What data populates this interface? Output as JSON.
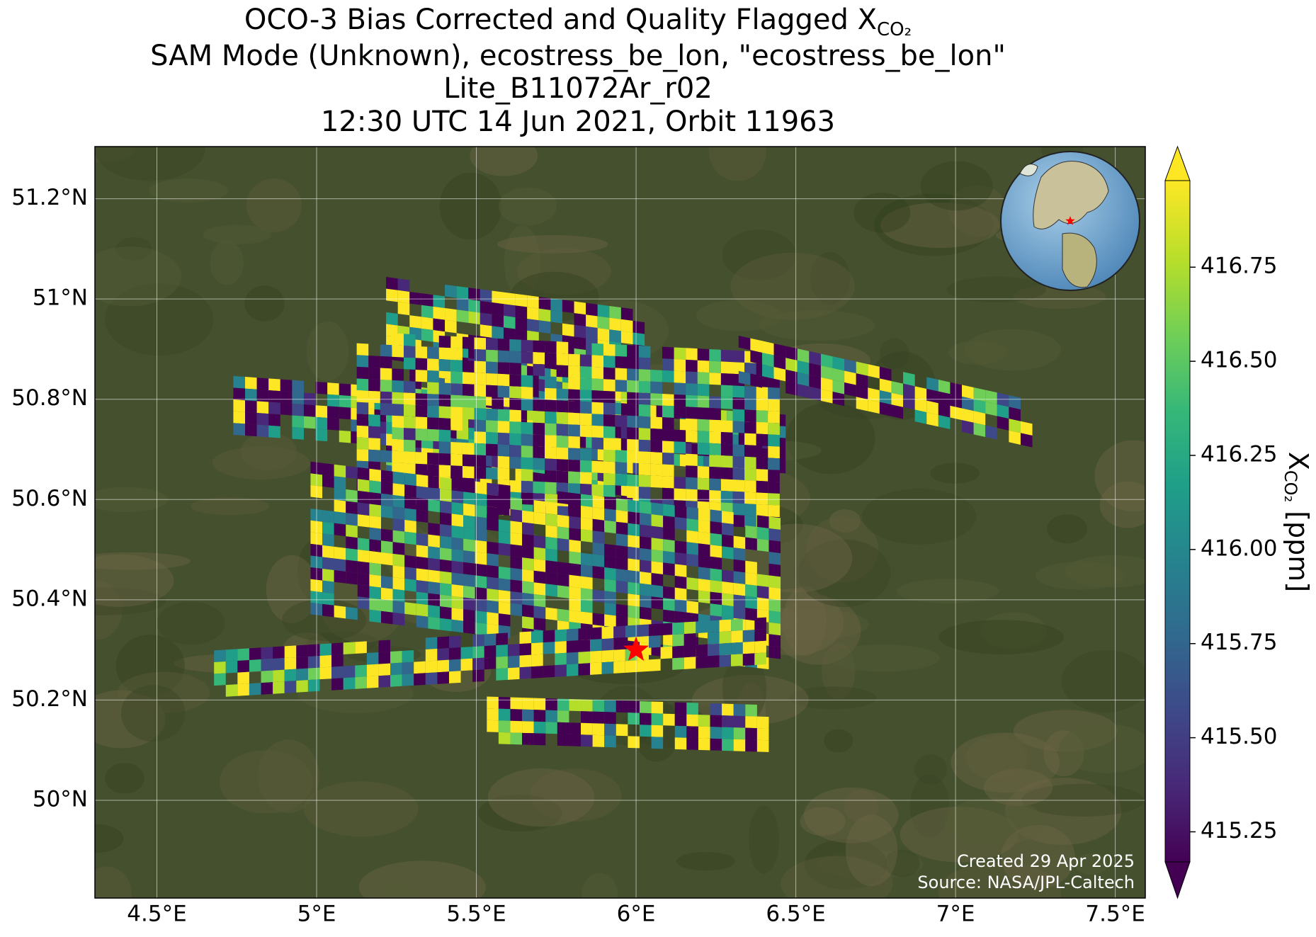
{
  "chart_data": {
    "type": "map",
    "title": [
      "OCO-3 Bias Corrected and Quality Flagged X",
      "SAM Mode (Unknown), ecostress_be_lon, \"ecostress_be_lon\"",
      "Lite_B11072Ar_r02",
      "12:30 UTC 14 Jun 2021, Orbit 11963"
    ],
    "title_subscript": "CO₂",
    "xlim": [
      4.306,
      7.594
    ],
    "ylim": [
      49.805,
      51.304
    ],
    "xticks": [
      {
        "value": 4.5,
        "label": "4.5°E"
      },
      {
        "value": 5,
        "label": "5°E"
      },
      {
        "value": 5.5,
        "label": "5.5°E"
      },
      {
        "value": 6,
        "label": "6°E"
      },
      {
        "value": 6.5,
        "label": "6.5°E"
      },
      {
        "value": 7,
        "label": "7°E"
      },
      {
        "value": 7.5,
        "label": "7.5°E"
      }
    ],
    "yticks": [
      {
        "value": 50,
        "label": "50°N"
      },
      {
        "value": 50.2,
        "label": "50.2°N"
      },
      {
        "value": 50.4,
        "label": "50.4°N"
      },
      {
        "value": 50.6,
        "label": "50.6°N"
      },
      {
        "value": 50.8,
        "label": "50.8°N"
      },
      {
        "value": 51,
        "label": "51°N"
      },
      {
        "value": 51.2,
        "label": "51.2°N"
      }
    ],
    "grid": true,
    "target": {
      "lon": 6.0,
      "lat": 50.3,
      "color": "#ff0000"
    },
    "colorbar": {
      "lim": [
        415.17,
        416.98
      ],
      "ticks": [
        415.25,
        {
          "value": 415.5,
          "label": "415.50"
        },
        415.75,
        {
          "value": 416,
          "label": "416.00"
        },
        416.25,
        {
          "value": 416.5,
          "label": "416.50"
        },
        416.75
      ],
      "label": "X",
      "label_subscript": "CO₂",
      "label_unit": "[ppm]"
    },
    "footer": [
      "Created 29 Apr 2025",
      "Source: NASA/JPL-Caltech"
    ]
  }
}
